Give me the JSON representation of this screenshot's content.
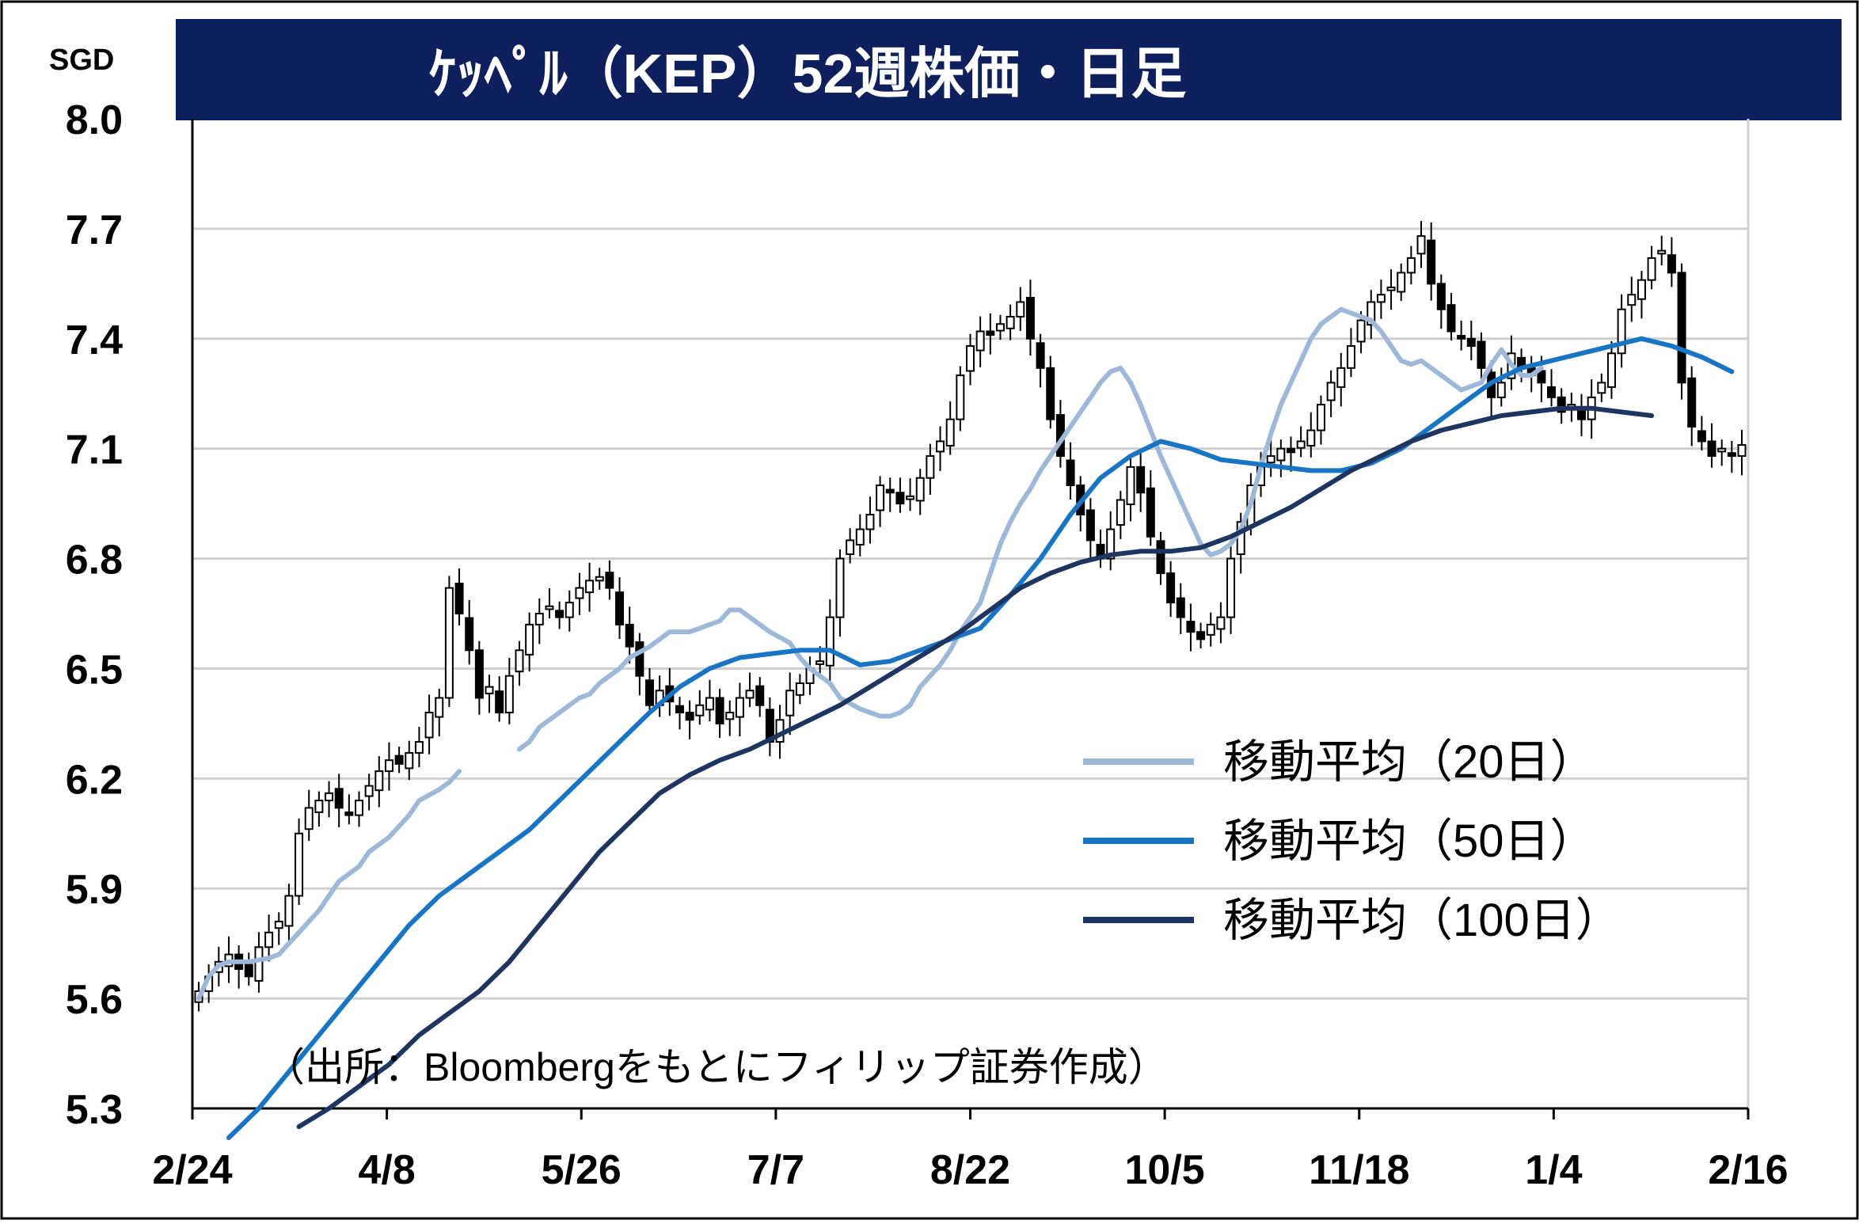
{
  "chart_data": {
    "type": "line",
    "title": "ｹｯﾍﾟﾙ（KEP）52週株価・日足",
    "unit": "SGD",
    "source": "（出所：Bloombergをもとにフィリップ証券作成）",
    "ylim": [
      5.3,
      8.0
    ],
    "yticks": [
      "8.0",
      "7.7",
      "7.4",
      "7.1",
      "6.8",
      "6.5",
      "6.2",
      "5.9",
      "5.6",
      "5.3"
    ],
    "xticks": [
      "2/24",
      "4/8",
      "5/26",
      "7/7",
      "8/22",
      "10/5",
      "11/18",
      "1/4",
      "2/16"
    ],
    "grid": true,
    "legend_position": "center-right",
    "colors": {
      "title_bg": "#0d1f5c",
      "ma20": "#9db8d9",
      "ma50": "#1874c4",
      "ma100": "#1d3560",
      "candle": "#000000",
      "grid": "#d0d0d0"
    },
    "price_close": [
      5.62,
      5.66,
      5.7,
      5.72,
      5.68,
      5.66,
      5.74,
      5.78,
      5.81,
      5.88,
      6.05,
      6.12,
      6.14,
      6.16,
      6.12,
      6.1,
      6.14,
      6.18,
      6.22,
      6.25,
      6.24,
      6.27,
      6.3,
      6.38,
      6.42,
      6.72,
      6.65,
      6.55,
      6.42,
      6.45,
      6.38,
      6.48,
      6.55,
      6.62,
      6.65,
      6.67,
      6.64,
      6.68,
      6.72,
      6.74,
      6.75,
      6.72,
      6.62,
      6.56,
      6.48,
      6.4,
      6.44,
      6.41,
      6.38,
      6.36,
      6.4,
      6.42,
      6.35,
      6.38,
      6.42,
      6.44,
      6.4,
      6.3,
      6.36,
      6.44,
      6.46,
      6.5,
      6.52,
      6.64,
      6.8,
      6.85,
      6.88,
      6.92,
      7.0,
      6.98,
      6.95,
      6.97,
      7.02,
      7.08,
      7.12,
      7.18,
      7.3,
      7.38,
      7.42,
      7.41,
      7.44,
      7.46,
      7.5,
      7.4,
      7.32,
      7.18,
      7.08,
      7.0,
      6.92,
      6.85,
      6.8,
      6.88,
      6.96,
      7.05,
      6.98,
      6.86,
      6.76,
      6.68,
      6.64,
      6.6,
      6.58,
      6.62,
      6.64,
      6.8,
      6.9,
      7.0,
      7.05,
      7.08,
      7.1,
      7.09,
      7.12,
      7.15,
      7.22,
      7.28,
      7.32,
      7.38,
      7.45,
      7.5,
      7.52,
      7.54,
      7.58,
      7.62,
      7.68,
      7.55,
      7.48,
      7.42,
      7.4,
      7.38,
      7.32,
      7.24,
      7.28,
      7.36,
      7.32,
      7.3,
      7.28,
      7.24,
      7.2,
      7.22,
      7.18,
      7.24,
      7.28,
      7.36,
      7.48,
      7.52,
      7.56,
      7.62,
      7.64,
      7.58,
      7.28,
      7.16,
      7.12,
      7.08,
      7.1,
      7.08,
      7.11
    ],
    "series": [
      {
        "name": "移動平均（20日）",
        "values": [
          5.6,
          5.66,
          5.69,
          5.7,
          5.7,
          5.71,
          5.72,
          5.78,
          5.84,
          5.88,
          5.92,
          5.96,
          6.0,
          6.04,
          6.07,
          6.1,
          6.14,
          6.17,
          6.19,
          6.22,
          null,
          null,
          null,
          null,
          6.28,
          6.3,
          6.34,
          6.38,
          6.4,
          6.42,
          6.43,
          6.46,
          6.5,
          6.53,
          6.56,
          6.58,
          6.6,
          6.6,
          6.6,
          6.61,
          6.63,
          6.66,
          6.66,
          6.64,
          6.62,
          6.6,
          6.57,
          6.53,
          6.5,
          6.48,
          6.46,
          6.42,
          6.39,
          6.38,
          6.37,
          6.37,
          6.38,
          6.4,
          6.45,
          6.48,
          6.51,
          6.55,
          6.6,
          6.68,
          6.76,
          6.84,
          6.9,
          6.95,
          6.99,
          7.04,
          7.08,
          7.12,
          7.16,
          7.2,
          7.24,
          7.28,
          7.31,
          7.32,
          7.28,
          7.22,
          7.15,
          7.08,
          7.02,
          6.96,
          6.9,
          6.84,
          6.81,
          6.82,
          6.84,
          6.88,
          6.95,
          7.05,
          7.14,
          7.22,
          7.28,
          7.34,
          7.4,
          7.44,
          7.46,
          7.48,
          7.47,
          7.45,
          7.42,
          7.38,
          7.34,
          7.33,
          7.34,
          7.3,
          7.26,
          7.28,
          7.33,
          7.37,
          7.33,
          7.3,
          7.3,
          7.32
        ],
        "x_index": [
          0,
          1,
          2,
          3,
          5,
          7,
          8,
          10,
          12,
          13,
          14,
          16,
          17,
          19,
          20,
          21,
          22,
          24,
          25,
          26,
          28,
          29,
          30,
          31,
          32,
          33,
          34,
          36,
          37,
          38,
          39,
          40,
          42,
          43,
          45,
          46,
          47,
          48,
          49,
          50,
          52,
          53,
          54,
          55,
          56,
          57,
          59,
          60,
          61,
          62,
          63,
          64,
          66,
          67,
          68,
          69,
          70,
          71,
          72,
          73,
          74,
          75,
          76,
          78,
          79,
          80,
          81,
          82,
          83,
          84,
          85,
          86,
          87,
          88,
          89,
          90,
          91,
          92,
          93,
          94,
          95,
          96,
          97,
          98,
          99,
          100,
          101,
          102,
          103,
          104,
          105,
          106,
          107,
          108,
          109,
          110,
          111,
          112,
          113,
          114,
          115,
          117,
          118,
          119,
          120,
          121,
          122,
          124,
          126,
          128,
          129,
          130,
          131,
          132,
          133,
          134
        ]
      },
      {
        "name": "移動平均（50日）",
        "values": [
          5.22,
          5.3,
          5.4,
          5.5,
          5.6,
          5.7,
          5.8,
          5.88,
          5.94,
          6.0,
          6.06,
          6.14,
          6.22,
          6.3,
          6.38,
          6.45,
          6.5,
          6.53,
          6.54,
          6.55,
          6.55,
          6.51,
          6.52,
          6.55,
          6.58,
          6.61,
          6.7,
          6.8,
          6.92,
          7.02,
          7.08,
          7.12,
          7.1,
          7.07,
          7.06,
          7.05,
          7.04,
          7.04,
          7.06,
          7.1,
          7.16,
          7.22,
          7.28,
          7.32,
          7.34,
          7.36,
          7.38,
          7.4,
          7.38,
          7.35,
          7.31
        ],
        "x_index": [
          3,
          6,
          9,
          12,
          15,
          18,
          21,
          24,
          27,
          30,
          33,
          36,
          39,
          42,
          45,
          48,
          51,
          54,
          57,
          60,
          63,
          66,
          69,
          72,
          75,
          78,
          81,
          84,
          87,
          90,
          93,
          96,
          99,
          102,
          105,
          108,
          111,
          114,
          117,
          120,
          123,
          126,
          129,
          132,
          135,
          138,
          141,
          144,
          147,
          150,
          153
        ]
      },
      {
        "name": "移動平均（100日）",
        "values": [
          5.25,
          5.3,
          5.36,
          5.42,
          5.5,
          5.56,
          5.62,
          5.7,
          5.8,
          5.9,
          6.0,
          6.08,
          6.16,
          6.21,
          6.25,
          6.28,
          6.32,
          6.36,
          6.4,
          6.45,
          6.5,
          6.55,
          6.6,
          6.66,
          6.72,
          6.76,
          6.79,
          6.81,
          6.82,
          6.82,
          6.83,
          6.86,
          6.9,
          6.94,
          6.99,
          7.04,
          7.08,
          7.12,
          7.15,
          7.17,
          7.19,
          7.2,
          7.21,
          7.21,
          7.2,
          7.19
        ],
        "x_index": [
          10,
          13,
          16,
          19,
          22,
          25,
          28,
          31,
          34,
          37,
          40,
          43,
          46,
          49,
          52,
          55,
          58,
          61,
          64,
          67,
          70,
          73,
          76,
          79,
          82,
          85,
          88,
          91,
          94,
          97,
          100,
          103,
          106,
          109,
          112,
          115,
          118,
          121,
          124,
          127,
          130,
          133,
          136,
          139,
          142,
          145
        ]
      }
    ]
  }
}
